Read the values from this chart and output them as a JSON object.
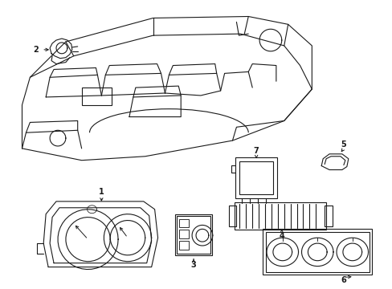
{
  "background_color": "#ffffff",
  "line_color": "#1a1a1a",
  "line_width": 0.8,
  "label_fontsize": 7,
  "fig_width": 4.89,
  "fig_height": 3.6,
  "dpi": 100
}
